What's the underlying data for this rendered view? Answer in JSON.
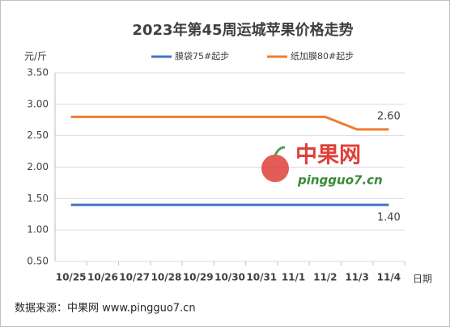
{
  "chart_data": {
    "type": "line",
    "title": "2023年第45周运城苹果价格走势",
    "y_label": "元/斤",
    "x_label": "日期",
    "source": "数据来源：中果网 www.pingguo7.cn",
    "watermark": [
      "中果网",
      "pingguo7.cn"
    ],
    "categories": [
      "10/25",
      "10/26",
      "10/27",
      "10/28",
      "10/29",
      "10/30",
      "10/31",
      "11/1",
      "11/2",
      "11/3",
      "11/4"
    ],
    "series": [
      {
        "name": "膜袋75#起步",
        "color": "#4472c4",
        "values": [
          1.4,
          1.4,
          1.4,
          1.4,
          1.4,
          1.4,
          1.4,
          1.4,
          1.4,
          1.4,
          1.4
        ],
        "value_labels": [
          null,
          null,
          null,
          null,
          null,
          null,
          null,
          null,
          null,
          null,
          "1.40"
        ]
      },
      {
        "name": "纸加膜80#起步",
        "color": "#ed7d31",
        "values": [
          2.8,
          2.8,
          2.8,
          2.8,
          2.8,
          2.8,
          2.8,
          2.8,
          2.8,
          2.6,
          2.6
        ],
        "value_labels": [
          null,
          null,
          null,
          null,
          null,
          null,
          null,
          null,
          null,
          null,
          "2.60"
        ]
      }
    ],
    "ylim": [
      0.5,
      3.5
    ],
    "yticks": [
      {
        "value": 0.5,
        "label": "0.50"
      },
      {
        "value": 1,
        "label": "1.00"
      },
      {
        "value": 1.5,
        "label": "1.50"
      },
      {
        "value": 2,
        "label": "2.00"
      },
      {
        "value": 2.5,
        "label": "2.50"
      },
      {
        "value": 3,
        "label": "3.00"
      },
      {
        "value": 3.5,
        "label": "3.50"
      }
    ],
    "grid": true,
    "legend": "top"
  }
}
